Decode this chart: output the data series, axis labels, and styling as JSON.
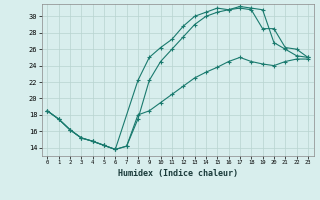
{
  "xlabel": "Humidex (Indice chaleur)",
  "bg_color": "#d8eeed",
  "line_color": "#1a7a6e",
  "grid_color": "#b8d4d0",
  "xlim": [
    -0.5,
    23.5
  ],
  "ylim": [
    13.0,
    31.5
  ],
  "xticks": [
    0,
    1,
    2,
    3,
    4,
    5,
    6,
    7,
    8,
    9,
    10,
    11,
    12,
    13,
    14,
    15,
    16,
    17,
    18,
    19,
    20,
    21,
    22,
    23
  ],
  "yticks": [
    14,
    16,
    18,
    20,
    22,
    24,
    26,
    28,
    30
  ],
  "line1_x": [
    0,
    1,
    2,
    3,
    4,
    5,
    6,
    8,
    9,
    10,
    11,
    12,
    13,
    14,
    15,
    16,
    17,
    18,
    19,
    20,
    21,
    22,
    23
  ],
  "line1_y": [
    18.5,
    17.5,
    16.2,
    15.2,
    14.8,
    14.3,
    13.8,
    22.2,
    25.0,
    26.2,
    27.2,
    28.8,
    30.0,
    30.5,
    31.0,
    30.8,
    31.2,
    31.0,
    30.8,
    26.8,
    26.0,
    25.2,
    25.0
  ],
  "line2_x": [
    0,
    1,
    2,
    3,
    4,
    5,
    6,
    7,
    8,
    9,
    10,
    11,
    12,
    13,
    14,
    15,
    16,
    17,
    18,
    19,
    20,
    21,
    22,
    23
  ],
  "line2_y": [
    18.5,
    17.5,
    16.2,
    15.2,
    14.8,
    14.3,
    13.8,
    14.2,
    17.5,
    22.2,
    24.5,
    26.0,
    27.5,
    29.0,
    30.0,
    30.5,
    30.8,
    31.0,
    30.8,
    28.5,
    28.5,
    26.2,
    26.0,
    25.0
  ],
  "line3_x": [
    0,
    1,
    2,
    3,
    4,
    5,
    6,
    7,
    8,
    9,
    10,
    11,
    12,
    13,
    14,
    15,
    16,
    17,
    18,
    19,
    20,
    21,
    22,
    23
  ],
  "line3_y": [
    18.5,
    17.5,
    16.2,
    15.2,
    14.8,
    14.3,
    13.8,
    14.2,
    18.0,
    18.5,
    19.5,
    20.5,
    21.5,
    22.5,
    23.2,
    23.8,
    24.5,
    25.0,
    24.5,
    24.2,
    24.0,
    24.5,
    24.8,
    24.8
  ]
}
